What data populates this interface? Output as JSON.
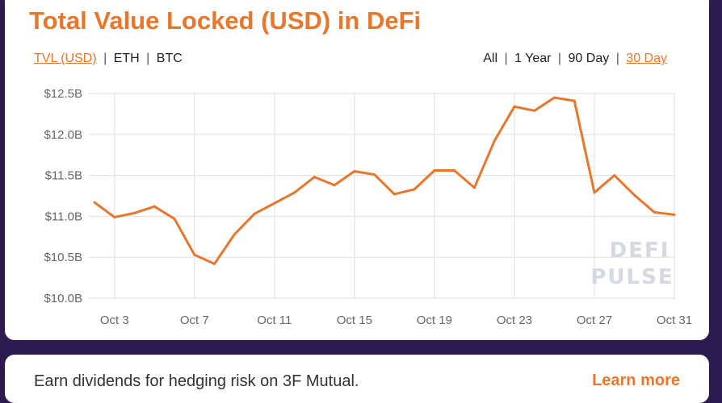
{
  "title": "Total Value Locked (USD) in DeFi",
  "metric_tabs": [
    {
      "label": "TVL (USD)",
      "active": true
    },
    {
      "label": "ETH",
      "active": false
    },
    {
      "label": "BTC",
      "active": false
    }
  ],
  "range_tabs": [
    {
      "label": "All",
      "active": false
    },
    {
      "label": "1 Year",
      "active": false
    },
    {
      "label": "90 Day",
      "active": false
    },
    {
      "label": "30 Day",
      "active": true
    }
  ],
  "separator": "|",
  "watermark": [
    "DEFI",
    "PULSE"
  ],
  "promo": {
    "text": "Earn dividends for hedging risk on 3F Mutual.",
    "link": "Learn more"
  },
  "colors": {
    "accent": "#e8772e",
    "background": "#2b1b4e",
    "grid": "#e3e3e8"
  },
  "chart_data": {
    "type": "line",
    "title": "Total Value Locked (USD) in DeFi",
    "xlabel": "",
    "ylabel": "",
    "x_unit": "day of October",
    "x": [
      2,
      3,
      4,
      5,
      6,
      7,
      8,
      9,
      10,
      11,
      12,
      13,
      14,
      15,
      16,
      17,
      18,
      19,
      20,
      21,
      22,
      23,
      24,
      25,
      26,
      27,
      28,
      29,
      30,
      31
    ],
    "series": [
      {
        "name": "TVL (USD)",
        "values": [
          11.17,
          10.99,
          11.04,
          11.12,
          10.97,
          10.53,
          10.42,
          10.78,
          11.03,
          11.16,
          11.29,
          11.48,
          11.38,
          11.55,
          11.51,
          11.27,
          11.33,
          11.56,
          11.56,
          11.35,
          11.92,
          12.34,
          12.29,
          12.45,
          12.41,
          11.29,
          11.5,
          11.26,
          11.05,
          11.02
        ]
      }
    ],
    "ylim": [
      10.0,
      12.5
    ],
    "xlim": [
      2,
      31
    ],
    "yticks": [
      {
        "v": 10.0,
        "label": "$10.0B"
      },
      {
        "v": 10.5,
        "label": "$10.5B"
      },
      {
        "v": 11.0,
        "label": "$11.0B"
      },
      {
        "v": 11.5,
        "label": "$11.5B"
      },
      {
        "v": 12.0,
        "label": "$12.0B"
      },
      {
        "v": 12.5,
        "label": "$12.5B"
      }
    ],
    "xticks": [
      {
        "v": 3,
        "label": "Oct 3"
      },
      {
        "v": 7,
        "label": "Oct 7"
      },
      {
        "v": 11,
        "label": "Oct 11"
      },
      {
        "v": 15,
        "label": "Oct 15"
      },
      {
        "v": 19,
        "label": "Oct 19"
      },
      {
        "v": 23,
        "label": "Oct 23"
      },
      {
        "v": 27,
        "label": "Oct 27"
      },
      {
        "v": 31,
        "label": "Oct 31"
      }
    ],
    "grid": true,
    "legend": "none"
  }
}
